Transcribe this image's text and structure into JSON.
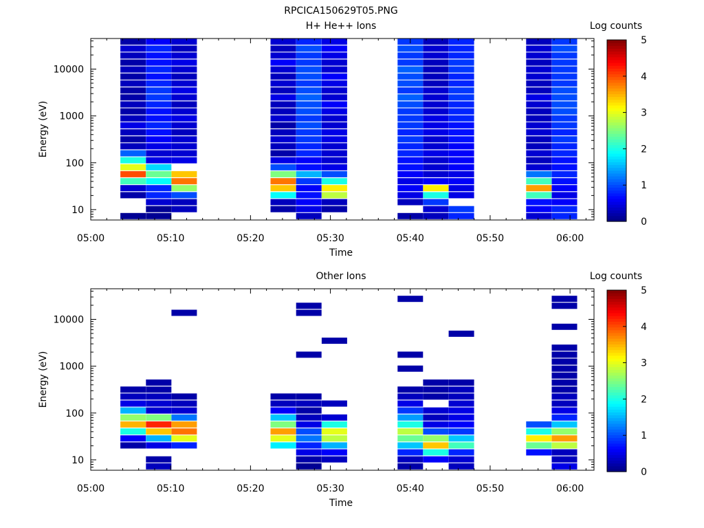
{
  "figure": {
    "title": "RPCICA150629T05.PNG"
  },
  "chart_data": [
    {
      "type": "heatmap",
      "title": "H+ He++ Ions",
      "xlabel": "Time",
      "ylabel": "Energy (eV)",
      "x_ticks": [
        "05:00",
        "05:10",
        "05:20",
        "05:30",
        "05:40",
        "05:50",
        "06:00"
      ],
      "x_range_min": [
        0,
        63
      ],
      "y_ticks": [
        "10",
        "100",
        "1000",
        "10000"
      ],
      "y_range_ev": [
        6,
        45000
      ],
      "y_scale": "log",
      "colorbar": {
        "label": "Log counts",
        "range": [
          0,
          5
        ],
        "ticks": [
          "0",
          "1",
          "2",
          "3",
          "4",
          "5"
        ]
      },
      "columns": [
        {
          "t": 5.3,
          "vals": [
            0.1,
            null,
            null,
            0.2,
            0.4,
            2.2,
            4.0,
            3.0,
            2.0,
            1.1,
            0.3,
            0.2,
            0.3,
            0.5,
            0.3,
            0.2,
            0.3,
            0.2,
            0.2,
            0.3,
            0.2,
            0.3,
            0.2,
            0.3,
            0.4,
            0.2
          ]
        },
        {
          "t": 8.5,
          "vals": [
            0.1,
            0.1,
            0.4,
            0.8,
            0.8,
            1.9,
            2.4,
            1.7,
            0.5,
            0.4,
            0.5,
            0.6,
            0.7,
            0.8,
            0.7,
            0.7,
            0.8,
            0.9,
            0.9,
            0.8,
            0.7,
            0.8,
            0.7,
            0.7,
            0.8,
            0.6
          ]
        },
        {
          "t": 11.7,
          "vals": [
            null,
            0.3,
            0.3,
            1.0,
            2.6,
            3.8,
            3.4,
            null,
            0.5,
            0.4,
            0.4,
            0.4,
            0.3,
            0.4,
            0.5,
            0.4,
            0.3,
            0.4,
            0.5,
            0.4,
            0.3,
            0.4,
            0.5,
            0.4,
            0.3,
            0.4
          ]
        },
        {
          "t": 24.1,
          "vals": [
            null,
            0.2,
            0.3,
            1.9,
            3.4,
            3.8,
            2.5,
            1.0,
            0.5,
            0.2,
            0.3,
            0.4,
            0.3,
            0.2,
            0.4,
            0.3,
            0.3,
            0.5,
            0.3,
            0.4,
            0.3,
            0.4,
            0.6,
            0.4,
            0.3,
            0.4
          ]
        },
        {
          "t": 27.3,
          "vals": [
            0.3,
            0.5,
            0.6,
            0.7,
            0.6,
            0.9,
            1.5,
            0.7,
            0.6,
            0.8,
            0.8,
            0.9,
            0.9,
            1.0,
            0.9,
            1.0,
            1.0,
            1.1,
            1.0,
            0.9,
            1.0,
            1.0,
            0.9,
            0.9,
            1.0,
            0.8
          ]
        },
        {
          "t": 30.5,
          "vals": [
            null,
            0.2,
            0.3,
            2.8,
            3.2,
            2.0,
            1.0,
            0.5,
            0.4,
            0.4,
            0.4,
            0.5,
            0.5,
            0.4,
            0.4,
            0.5,
            0.6,
            0.4,
            0.4,
            0.5,
            0.6,
            0.4,
            0.4,
            0.5,
            0.6,
            0.5
          ]
        },
        {
          "t": 40.0,
          "vals": [
            0.2,
            null,
            0.3,
            0.5,
            0.6,
            0.5,
            0.6,
            0.7,
            0.7,
            0.8,
            0.8,
            0.9,
            0.8,
            0.9,
            0.9,
            0.9,
            1.0,
            1.1,
            0.9,
            1.0,
            1.0,
            1.1,
            0.9,
            0.9,
            1.0,
            0.9
          ]
        },
        {
          "t": 43.2,
          "vals": [
            0.3,
            0.4,
            0.9,
            2.0,
            3.2,
            0.6,
            0.4,
            0.4,
            0.4,
            0.5,
            0.4,
            0.4,
            0.5,
            0.5,
            0.5,
            0.4,
            0.4,
            0.4,
            0.4,
            0.3,
            0.3,
            0.3,
            0.3,
            0.4,
            0.4,
            0.3
          ]
        },
        {
          "t": 46.4,
          "vals": [
            0.8,
            0.9,
            null,
            0.5,
            0.5,
            0.6,
            0.5,
            0.6,
            0.6,
            0.6,
            0.6,
            0.7,
            0.7,
            0.7,
            0.8,
            0.8,
            0.8,
            0.9,
            0.9,
            0.8,
            0.8,
            0.9,
            0.9,
            0.8,
            0.8,
            0.8
          ]
        },
        {
          "t": 56.1,
          "vals": [
            0.4,
            0.6,
            0.7,
            2.2,
            3.6,
            2.2,
            1.2,
            0.4,
            0.3,
            0.4,
            0.3,
            0.3,
            0.4,
            0.4,
            0.3,
            0.3,
            0.4,
            0.5,
            0.3,
            0.3,
            0.4,
            0.4,
            0.3,
            0.4,
            0.4,
            0.3
          ]
        },
        {
          "t": 59.3,
          "vals": [
            0.8,
            0.8,
            0.6,
            0.5,
            0.6,
            0.7,
            0.8,
            0.7,
            0.7,
            0.8,
            0.8,
            0.9,
            0.8,
            0.9,
            0.9,
            1.0,
            1.0,
            1.0,
            1.0,
            0.9,
            0.9,
            0.9,
            0.9,
            0.9,
            1.0,
            0.9
          ]
        }
      ]
    },
    {
      "type": "heatmap",
      "title": "Other Ions",
      "xlabel": "Time",
      "ylabel": "Energy (eV)",
      "x_ticks": [
        "05:00",
        "05:10",
        "05:20",
        "05:30",
        "05:40",
        "05:50",
        "06:00"
      ],
      "x_range_min": [
        0,
        63
      ],
      "y_ticks": [
        "10",
        "100",
        "1000",
        "10000"
      ],
      "y_range_ev": [
        6,
        45000
      ],
      "y_scale": "log",
      "colorbar": {
        "label": "Log counts",
        "range": [
          0,
          5
        ],
        "ticks": [
          "0",
          "1",
          "2",
          "3",
          "4",
          "5"
        ]
      },
      "columns": [
        {
          "t": 5.3,
          "vals": [
            null,
            null,
            null,
            0.2,
            0.6,
            2.0,
            3.5,
            2.6,
            1.5,
            0.5,
            0.3,
            0.2,
            null,
            null,
            null,
            null,
            null,
            null,
            null,
            null,
            null,
            null,
            null,
            null,
            null,
            null
          ]
        },
        {
          "t": 8.5,
          "vals": [
            0.3,
            0.2,
            null,
            0.5,
            1.5,
            3.4,
            4.2,
            2.5,
            0.4,
            0.4,
            0.3,
            0.2,
            0.2,
            null,
            null,
            null,
            null,
            null,
            null,
            null,
            null,
            null,
            null,
            null,
            null,
            null
          ]
        },
        {
          "t": 11.7,
          "vals": [
            null,
            null,
            null,
            0.8,
            3.0,
            3.8,
            3.6,
            1.2,
            0.4,
            0.3,
            0.2,
            null,
            null,
            null,
            null,
            null,
            null,
            null,
            null,
            null,
            null,
            null,
            0.2,
            null,
            null,
            null
          ]
        },
        {
          "t": 24.1,
          "vals": [
            null,
            null,
            null,
            1.8,
            3.0,
            3.6,
            2.5,
            1.6,
            0.6,
            0.3,
            0.2,
            null,
            null,
            null,
            null,
            null,
            null,
            null,
            null,
            null,
            null,
            null,
            null,
            null,
            null,
            null
          ]
        },
        {
          "t": 27.3,
          "vals": [
            0.1,
            0.2,
            0.5,
            0.8,
            1.2,
            1.0,
            0.5,
            0.3,
            0.2,
            0.3,
            0.2,
            null,
            null,
            null,
            null,
            null,
            0.2,
            null,
            null,
            null,
            null,
            null,
            0.2,
            0.2,
            null,
            null
          ]
        },
        {
          "t": 30.5,
          "vals": [
            null,
            0.3,
            0.6,
            1.5,
            2.8,
            3.0,
            2.0,
            0.4,
            null,
            0.3,
            null,
            null,
            null,
            null,
            null,
            null,
            null,
            null,
            0.2,
            null,
            null,
            null,
            null,
            null,
            null,
            null
          ]
        },
        {
          "t": 40.0,
          "vals": [
            0.2,
            0.3,
            0.8,
            1.6,
            2.4,
            2.8,
            2.0,
            1.4,
            0.9,
            0.5,
            0.3,
            0.2,
            null,
            null,
            0.2,
            null,
            0.2,
            null,
            null,
            null,
            null,
            null,
            null,
            null,
            0.2,
            null
          ]
        },
        {
          "t": 43.2,
          "vals": [
            null,
            0.6,
            2.0,
            3.4,
            2.6,
            1.0,
            0.5,
            0.3,
            0.4,
            null,
            0.2,
            0.2,
            0.2,
            null,
            null,
            null,
            null,
            null,
            null,
            null,
            null,
            null,
            null,
            null,
            null,
            null
          ]
        },
        {
          "t": 46.4,
          "vals": [
            0.3,
            0.4,
            0.8,
            2.2,
            1.6,
            0.9,
            0.6,
            0.5,
            0.5,
            0.4,
            0.3,
            0.3,
            0.2,
            null,
            null,
            null,
            null,
            null,
            null,
            0.2,
            null,
            null,
            null,
            null,
            null,
            null
          ]
        },
        {
          "t": 56.1,
          "vals": [
            null,
            null,
            0.7,
            2.4,
            3.2,
            2.0,
            1.0,
            null,
            null,
            null,
            null,
            null,
            null,
            null,
            null,
            null,
            null,
            null,
            null,
            null,
            null,
            null,
            null,
            null,
            null,
            null
          ]
        },
        {
          "t": 59.3,
          "vals": [
            0.5,
            0.3,
            0.3,
            2.8,
            3.6,
            2.6,
            1.6,
            0.8,
            0.5,
            0.3,
            0.3,
            0.2,
            0.2,
            0.2,
            0.2,
            0.2,
            0.2,
            0.2,
            null,
            null,
            0.2,
            null,
            null,
            0.2,
            0.2,
            null
          ]
        }
      ]
    }
  ]
}
